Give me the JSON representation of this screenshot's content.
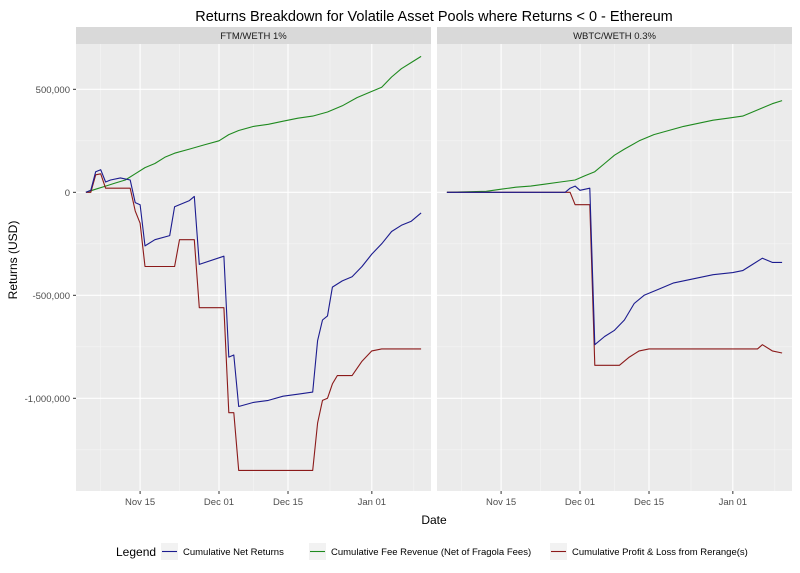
{
  "chart_data": {
    "type": "line",
    "title": "Returns Breakdown for Volatile Asset Pools where Returns < 0 - Ethereum",
    "xlabel": "Date",
    "ylabel": "Returns (USD)",
    "x_range": [
      "2021-11-02",
      "2022-01-13"
    ],
    "ylim": [
      -1450000,
      720000
    ],
    "x_ticks": [
      {
        "date": "2021-11-15",
        "label": "Nov 15"
      },
      {
        "date": "2021-12-01",
        "label": "Dec 01"
      },
      {
        "date": "2021-12-15",
        "label": "Dec 15"
      },
      {
        "date": "2022-01-01",
        "label": "Jan 01"
      }
    ],
    "y_ticks": [
      {
        "value": 500000,
        "label": "500,000"
      },
      {
        "value": 0,
        "label": "0"
      },
      {
        "value": -500000,
        "label": "-500,000"
      },
      {
        "value": -1000000,
        "label": "-1,000,000"
      }
    ],
    "grid": true,
    "legend": {
      "title": "Legend",
      "position": "bottom",
      "entries": [
        {
          "key": "net",
          "label": "Cumulative Net Returns",
          "color": "#1c1c8f"
        },
        {
          "key": "fee",
          "label": "Cumulative Fee Revenue (Net of Fragola Fees)",
          "color": "#1f8a1f"
        },
        {
          "key": "pnl",
          "label": "Cumulative Profit & Loss from Rerange(s)",
          "color": "#8b1a1a"
        }
      ]
    },
    "panels": [
      {
        "strip": "FTM/WETH 1%",
        "series": [
          {
            "key": "fee",
            "points": [
              [
                "2021-11-04",
                0
              ],
              [
                "2021-11-06",
                15000
              ],
              [
                "2021-11-08",
                30000
              ],
              [
                "2021-11-10",
                45000
              ],
              [
                "2021-11-12",
                60000
              ],
              [
                "2021-11-14",
                90000
              ],
              [
                "2021-11-16",
                120000
              ],
              [
                "2021-11-18",
                140000
              ],
              [
                "2021-11-20",
                170000
              ],
              [
                "2021-11-22",
                190000
              ],
              [
                "2021-11-25",
                210000
              ],
              [
                "2021-11-28",
                230000
              ],
              [
                "2021-12-01",
                250000
              ],
              [
                "2021-12-03",
                280000
              ],
              [
                "2021-12-05",
                300000
              ],
              [
                "2021-12-08",
                320000
              ],
              [
                "2021-12-11",
                330000
              ],
              [
                "2021-12-14",
                345000
              ],
              [
                "2021-12-17",
                360000
              ],
              [
                "2021-12-20",
                370000
              ],
              [
                "2021-12-23",
                390000
              ],
              [
                "2021-12-26",
                420000
              ],
              [
                "2021-12-29",
                460000
              ],
              [
                "2022-01-01",
                490000
              ],
              [
                "2022-01-03",
                510000
              ],
              [
                "2022-01-05",
                560000
              ],
              [
                "2022-01-07",
                600000
              ],
              [
                "2022-01-09",
                630000
              ],
              [
                "2022-01-11",
                660000
              ]
            ]
          },
          {
            "key": "pnl",
            "points": [
              [
                "2021-11-04",
                0
              ],
              [
                "2021-11-05",
                0
              ],
              [
                "2021-11-06",
                85000
              ],
              [
                "2021-11-07",
                90000
              ],
              [
                "2021-11-08",
                20000
              ],
              [
                "2021-11-13",
                20000
              ],
              [
                "2021-11-14",
                -90000
              ],
              [
                "2021-11-15",
                -150000
              ],
              [
                "2021-11-16",
                -360000
              ],
              [
                "2021-11-22",
                -360000
              ],
              [
                "2021-11-23",
                -230000
              ],
              [
                "2021-11-26",
                -230000
              ],
              [
                "2021-11-27",
                -560000
              ],
              [
                "2021-12-02",
                -560000
              ],
              [
                "2021-12-03",
                -1070000
              ],
              [
                "2021-12-04",
                -1070000
              ],
              [
                "2021-12-05",
                -1350000
              ],
              [
                "2021-12-20",
                -1350000
              ],
              [
                "2021-12-21",
                -1120000
              ],
              [
                "2021-12-22",
                -1010000
              ],
              [
                "2021-12-23",
                -1000000
              ],
              [
                "2021-12-24",
                -930000
              ],
              [
                "2021-12-25",
                -890000
              ],
              [
                "2021-12-28",
                -890000
              ],
              [
                "2021-12-30",
                -820000
              ],
              [
                "2022-01-01",
                -770000
              ],
              [
                "2022-01-03",
                -760000
              ],
              [
                "2022-01-11",
                -760000
              ]
            ]
          },
          {
            "key": "net",
            "points": [
              [
                "2021-11-04",
                0
              ],
              [
                "2021-11-05",
                10000
              ],
              [
                "2021-11-06",
                100000
              ],
              [
                "2021-11-07",
                110000
              ],
              [
                "2021-11-08",
                50000
              ],
              [
                "2021-11-09",
                60000
              ],
              [
                "2021-11-11",
                70000
              ],
              [
                "2021-11-13",
                60000
              ],
              [
                "2021-11-14",
                -50000
              ],
              [
                "2021-11-15",
                -60000
              ],
              [
                "2021-11-16",
                -260000
              ],
              [
                "2021-11-18",
                -230000
              ],
              [
                "2021-11-21",
                -210000
              ],
              [
                "2021-11-22",
                -70000
              ],
              [
                "2021-11-25",
                -40000
              ],
              [
                "2021-11-26",
                -20000
              ],
              [
                "2021-11-27",
                -350000
              ],
              [
                "2021-12-02",
                -310000
              ],
              [
                "2021-12-03",
                -800000
              ],
              [
                "2021-12-04",
                -790000
              ],
              [
                "2021-12-05",
                -1040000
              ],
              [
                "2021-12-08",
                -1020000
              ],
              [
                "2021-12-11",
                -1010000
              ],
              [
                "2021-12-14",
                -990000
              ],
              [
                "2021-12-17",
                -980000
              ],
              [
                "2021-12-20",
                -970000
              ],
              [
                "2021-12-21",
                -720000
              ],
              [
                "2021-12-22",
                -620000
              ],
              [
                "2021-12-23",
                -600000
              ],
              [
                "2021-12-24",
                -460000
              ],
              [
                "2021-12-26",
                -430000
              ],
              [
                "2021-12-28",
                -410000
              ],
              [
                "2021-12-30",
                -360000
              ],
              [
                "2022-01-01",
                -300000
              ],
              [
                "2022-01-03",
                -250000
              ],
              [
                "2022-01-05",
                -190000
              ],
              [
                "2022-01-07",
                -160000
              ],
              [
                "2022-01-09",
                -140000
              ],
              [
                "2022-01-11",
                -100000
              ]
            ]
          }
        ]
      },
      {
        "strip": "WBTC/WETH 0.3%",
        "series": [
          {
            "key": "fee",
            "points": [
              [
                "2021-11-04",
                0
              ],
              [
                "2021-11-12",
                5000
              ],
              [
                "2021-11-15",
                15000
              ],
              [
                "2021-11-18",
                25000
              ],
              [
                "2021-11-21",
                30000
              ],
              [
                "2021-11-24",
                40000
              ],
              [
                "2021-11-27",
                50000
              ],
              [
                "2021-11-30",
                60000
              ],
              [
                "2021-12-02",
                80000
              ],
              [
                "2021-12-04",
                100000
              ],
              [
                "2021-12-06",
                140000
              ],
              [
                "2021-12-08",
                180000
              ],
              [
                "2021-12-10",
                210000
              ],
              [
                "2021-12-13",
                250000
              ],
              [
                "2021-12-16",
                280000
              ],
              [
                "2021-12-19",
                300000
              ],
              [
                "2021-12-22",
                320000
              ],
              [
                "2021-12-25",
                335000
              ],
              [
                "2021-12-28",
                350000
              ],
              [
                "2021-12-31",
                360000
              ],
              [
                "2022-01-03",
                370000
              ],
              [
                "2022-01-05",
                390000
              ],
              [
                "2022-01-07",
                410000
              ],
              [
                "2022-01-09",
                430000
              ],
              [
                "2022-01-11",
                445000
              ]
            ]
          },
          {
            "key": "pnl",
            "points": [
              [
                "2021-11-04",
                0
              ],
              [
                "2021-11-29",
                0
              ],
              [
                "2021-11-30",
                -60000
              ],
              [
                "2021-12-03",
                -60000
              ],
              [
                "2021-12-04",
                -840000
              ],
              [
                "2021-12-09",
                -840000
              ],
              [
                "2021-12-11",
                -800000
              ],
              [
                "2021-12-13",
                -770000
              ],
              [
                "2021-12-15",
                -760000
              ],
              [
                "2022-01-06",
                -760000
              ],
              [
                "2022-01-07",
                -740000
              ],
              [
                "2022-01-09",
                -770000
              ],
              [
                "2022-01-11",
                -780000
              ]
            ]
          },
          {
            "key": "net",
            "points": [
              [
                "2021-11-04",
                0
              ],
              [
                "2021-11-28",
                0
              ],
              [
                "2021-11-29",
                20000
              ],
              [
                "2021-11-30",
                30000
              ],
              [
                "2021-12-01",
                10000
              ],
              [
                "2021-12-03",
                20000
              ],
              [
                "2021-12-04",
                -740000
              ],
              [
                "2021-12-06",
                -700000
              ],
              [
                "2021-12-08",
                -670000
              ],
              [
                "2021-12-10",
                -620000
              ],
              [
                "2021-12-12",
                -540000
              ],
              [
                "2021-12-14",
                -500000
              ],
              [
                "2021-12-17",
                -470000
              ],
              [
                "2021-12-20",
                -440000
              ],
              [
                "2021-12-24",
                -420000
              ],
              [
                "2021-12-28",
                -400000
              ],
              [
                "2022-01-01",
                -390000
              ],
              [
                "2022-01-03",
                -380000
              ],
              [
                "2022-01-05",
                -350000
              ],
              [
                "2022-01-07",
                -320000
              ],
              [
                "2022-01-09",
                -340000
              ],
              [
                "2022-01-11",
                -340000
              ]
            ]
          }
        ]
      }
    ]
  }
}
